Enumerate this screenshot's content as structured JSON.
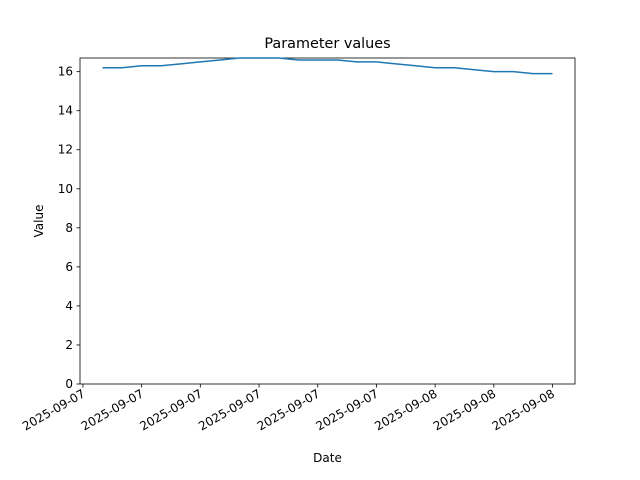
{
  "chart_data": {
    "type": "line",
    "title": "Parameter values",
    "xlabel": "Date",
    "ylabel": "Value",
    "x": [
      "2025-09-07T07:00",
      "2025-09-07T08:00",
      "2025-09-07T09:00",
      "2025-09-07T10:00",
      "2025-09-07T11:00",
      "2025-09-07T12:00",
      "2025-09-07T13:00",
      "2025-09-07T14:00",
      "2025-09-07T15:00",
      "2025-09-07T16:00",
      "2025-09-07T17:00",
      "2025-09-07T18:00",
      "2025-09-07T19:00",
      "2025-09-07T20:00",
      "2025-09-07T21:00",
      "2025-09-07T22:00",
      "2025-09-07T23:00",
      "2025-09-08T00:00",
      "2025-09-08T01:00",
      "2025-09-08T02:00",
      "2025-09-08T03:00",
      "2025-09-08T04:00",
      "2025-09-08T05:00",
      "2025-09-08T06:00"
    ],
    "values": [
      16.2,
      16.2,
      16.3,
      16.3,
      16.4,
      16.5,
      16.6,
      16.7,
      16.7,
      16.7,
      16.6,
      16.6,
      16.6,
      16.5,
      16.5,
      16.4,
      16.3,
      16.2,
      16.2,
      16.1,
      16.0,
      16.0,
      15.9,
      15.9
    ],
    "color": "#1f77b4",
    "xlim": [
      "2025-09-07T05:51",
      "2025-09-08T07:09"
    ],
    "xticks": [
      {
        "value": "2025-09-07T06:00",
        "label": "2025-09-07"
      },
      {
        "value": "2025-09-07T09:00",
        "label": "2025-09-07"
      },
      {
        "value": "2025-09-07T12:00",
        "label": "2025-09-07"
      },
      {
        "value": "2025-09-07T15:00",
        "label": "2025-09-07"
      },
      {
        "value": "2025-09-07T18:00",
        "label": "2025-09-07"
      },
      {
        "value": "2025-09-07T21:00",
        "label": "2025-09-07"
      },
      {
        "value": "2025-09-08T00:00",
        "label": "2025-09-08"
      },
      {
        "value": "2025-09-08T03:00",
        "label": "2025-09-08"
      },
      {
        "value": "2025-09-08T06:00",
        "label": "2025-09-08"
      }
    ],
    "ylim": [
      0,
      16.7
    ],
    "yticks": [
      0,
      2,
      4,
      6,
      8,
      10,
      12,
      14,
      16
    ],
    "grid": false
  }
}
